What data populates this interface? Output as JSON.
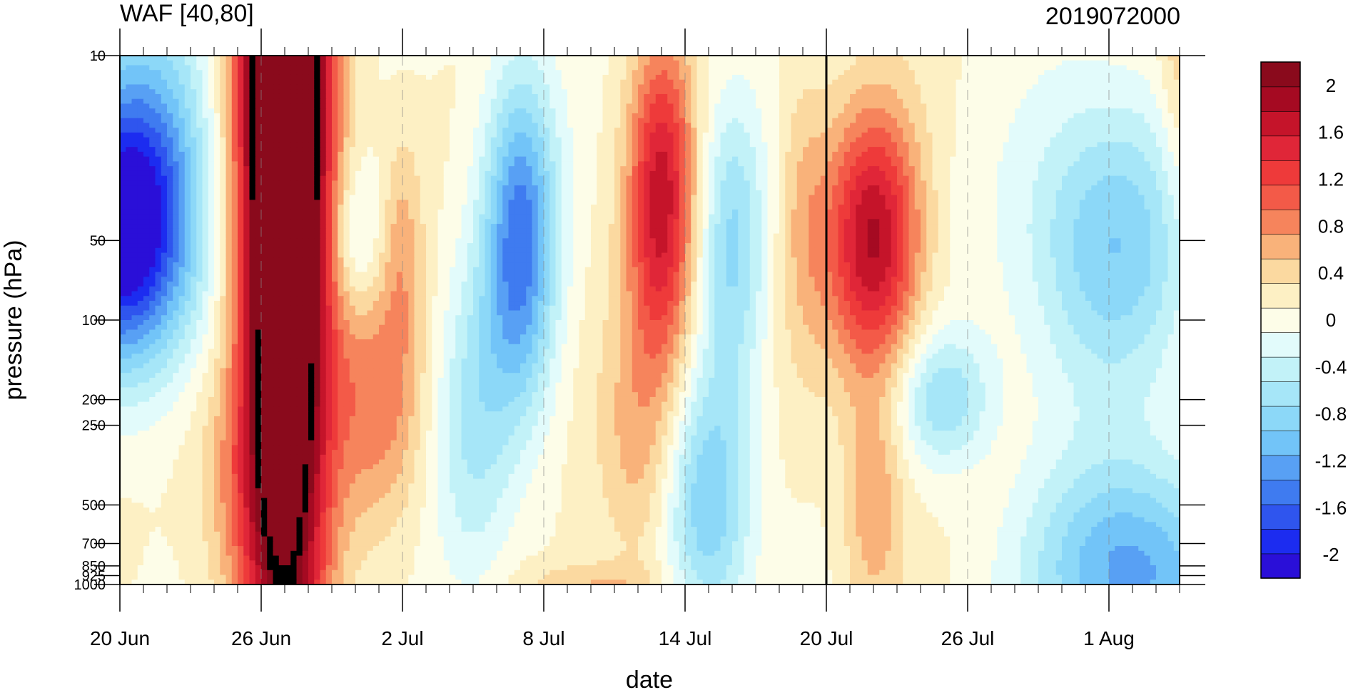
{
  "chart_data": {
    "type": "heatmap",
    "title": "WAF [40,80]",
    "subtitle": "2019072000",
    "xlabel": "date",
    "ylabel": "pressure (hPa)",
    "y_scale": "log",
    "y_reversed": true,
    "ylim": [
      1000,
      10
    ],
    "xlim": [
      "2019-06-20",
      "2019-08-04"
    ],
    "x_ticks": [
      {
        "date": "2019-06-20",
        "label": "20 Jun"
      },
      {
        "date": "2019-06-26",
        "label": "26 Jun"
      },
      {
        "date": "2019-07-02",
        "label": "2 Jul"
      },
      {
        "date": "2019-07-08",
        "label": "8 Jul"
      },
      {
        "date": "2019-07-14",
        "label": "14 Jul"
      },
      {
        "date": "2019-07-20",
        "label": "20 Jul"
      },
      {
        "date": "2019-07-26",
        "label": "26 Jul"
      },
      {
        "date": "2019-08-01",
        "label": "1 Aug"
      }
    ],
    "y_ticks": [
      10,
      50,
      100,
      200,
      250,
      500,
      700,
      850,
      925,
      1000
    ],
    "reference_date": "2019-07-20",
    "colorbar": {
      "levels": [
        -2.2,
        -2,
        -1.8,
        -1.6,
        -1.4,
        -1.2,
        -1,
        -0.8,
        -0.6,
        -0.4,
        -0.2,
        0,
        0.2,
        0.4,
        0.6,
        0.8,
        1,
        1.2,
        1.4,
        1.6,
        1.8,
        2,
        2.2
      ],
      "labels": [
        "2",
        "1.6",
        "1.2",
        "0.8",
        "0.4",
        "0",
        "-0.4",
        "-0.8",
        "-1.2",
        "-1.6",
        "-2"
      ],
      "label_values": [
        2,
        1.6,
        1.2,
        0.8,
        0.4,
        0,
        -0.4,
        -0.8,
        -1.2,
        -1.6,
        -2
      ],
      "colors": [
        "#2a0fd8",
        "#1c2cf0",
        "#2f55ee",
        "#3f7bf0",
        "#58a0f4",
        "#72c4f8",
        "#8cd8f8",
        "#a6e6f8",
        "#c2f2f8",
        "#e2fbfb",
        "#fdfde8",
        "#fdf0c4",
        "#fbd9a0",
        "#f9b27a",
        "#f6845c",
        "#f35a48",
        "#ee3a3a",
        "#e02638",
        "#c5142a",
        "#a50a22",
        "#8a0a1c"
      ]
    },
    "features": [
      {
        "date": "2019-06-27",
        "p": 10,
        "value": 2.2,
        "sx": 1.4,
        "sy": 1.4
      },
      {
        "date": "2019-06-27",
        "p": 60,
        "value": 1.6,
        "sx": 1.2,
        "sy": 1.6
      },
      {
        "date": "2019-06-20",
        "p": 50,
        "value": -2.0,
        "sx": 2.2,
        "sy": 0.35
      },
      {
        "date": "2019-06-21",
        "p": 20,
        "value": -0.8,
        "sx": 2.0,
        "sy": 0.45
      },
      {
        "date": "2019-06-30",
        "p": 50,
        "value": -0.5,
        "sx": 0.8,
        "sy": 0.2
      },
      {
        "date": "2019-07-01",
        "p": 200,
        "value": 0.7,
        "sx": 1.4,
        "sy": 0.35
      },
      {
        "date": "2019-07-02",
        "p": 50,
        "value": 0.4,
        "sx": 0.6,
        "sy": 0.3
      },
      {
        "date": "2019-06-25",
        "p": 400,
        "value": 0.4,
        "sx": 1.4,
        "sy": 0.3
      },
      {
        "date": "2019-07-07",
        "p": 50,
        "value": -1.5,
        "sx": 1.1,
        "sy": 0.45
      },
      {
        "date": "2019-07-05",
        "p": 250,
        "value": -0.6,
        "sx": 1.2,
        "sy": 0.45
      },
      {
        "date": "2019-07-13",
        "p": 50,
        "value": 1.1,
        "sx": 1.0,
        "sy": 0.4
      },
      {
        "date": "2019-07-13",
        "p": 20,
        "value": 0.6,
        "sx": 1.0,
        "sy": 0.35
      },
      {
        "date": "2019-07-12",
        "p": 300,
        "value": 0.5,
        "sx": 1.2,
        "sy": 0.35
      },
      {
        "date": "2019-07-16",
        "p": 50,
        "value": -0.8,
        "sx": 1.0,
        "sy": 0.4
      },
      {
        "date": "2019-07-19",
        "p": 40,
        "value": 0.4,
        "sx": 0.8,
        "sy": 0.4
      },
      {
        "date": "2019-07-15",
        "p": 500,
        "value": -1.0,
        "sx": 1.3,
        "sy": 0.35
      },
      {
        "date": "2019-07-22",
        "p": 50,
        "value": 1.6,
        "sx": 1.4,
        "sy": 0.35
      },
      {
        "date": "2019-07-22",
        "p": 500,
        "value": 0.6,
        "sx": 0.9,
        "sy": 0.3
      },
      {
        "date": "2019-07-25",
        "p": 200,
        "value": -0.8,
        "sx": 1.4,
        "sy": 0.18
      },
      {
        "date": "2019-08-01",
        "p": 50,
        "value": -1.0,
        "sx": 2.6,
        "sy": 0.4
      },
      {
        "date": "2019-08-02",
        "p": 900,
        "value": -1.3,
        "sx": 3.0,
        "sy": 0.3
      },
      {
        "date": "2019-08-04",
        "p": 10,
        "value": 0.4,
        "sx": 0.6,
        "sy": 0.5
      },
      {
        "date": "2019-07-10",
        "p": 1000,
        "value": 0.4,
        "sx": 2.0,
        "sy": 0.06
      }
    ]
  }
}
